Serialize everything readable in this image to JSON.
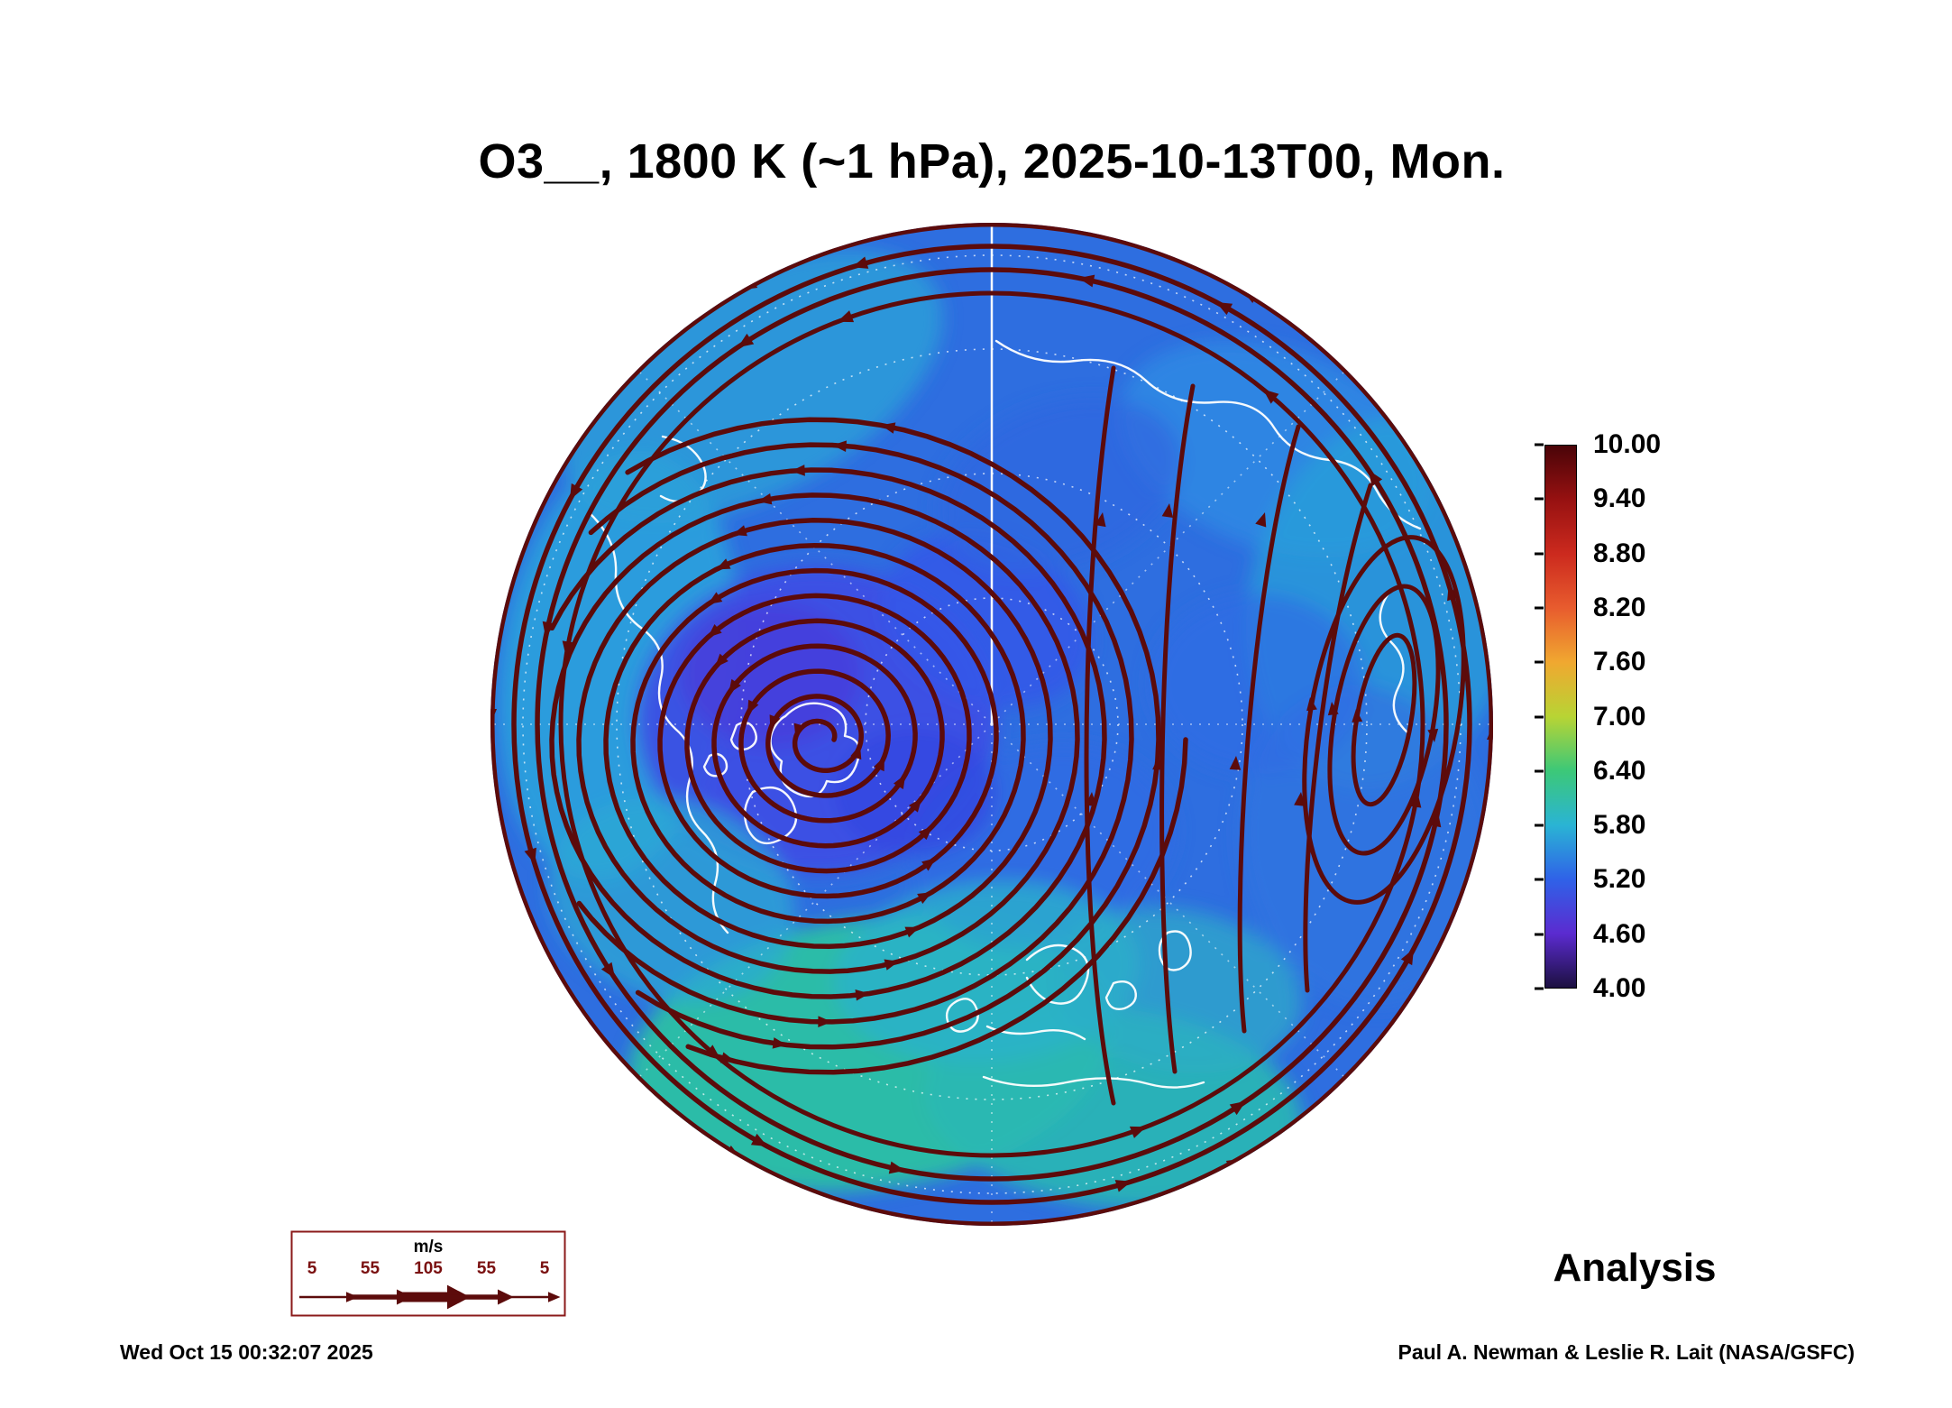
{
  "title": "O3__, 1800 K (~1 hPa), 2025-10-13T00, Mon.",
  "annotation": {
    "analysis_label": "Analysis"
  },
  "footer": {
    "timestamp": "Wed Oct 15 00:32:07 2025",
    "credit": "Paul A. Newman & Leslie R. Lait (NASA/GSFC)"
  },
  "wind_legend": {
    "units_label": "m/s",
    "speed_labels": [
      "5",
      "55",
      "105",
      "55",
      "5"
    ]
  },
  "colorbar": {
    "ticks": [
      "10.00",
      "9.40",
      "8.80",
      "8.20",
      "7.60",
      "7.00",
      "6.40",
      "5.80",
      "5.20",
      "4.60",
      "4.00"
    ],
    "colors_top_to_bottom": [
      "#4a0408",
      "#971111",
      "#cc2a1e",
      "#e85c2e",
      "#f0a830",
      "#b8d434",
      "#3cc878",
      "#2ab4d4",
      "#2f62e8",
      "#5b2bd0",
      "#1c1040"
    ]
  },
  "chart_data": {
    "type": "heatmap",
    "title": "O3__, 1800 K (~1 hPa), 2025-10-13T00, Mon.",
    "variable": "O3",
    "level": "1800 K (~1 hPa)",
    "valid_time": "2025-10-13T00",
    "weekday": "Mon.",
    "product": "Analysis",
    "projection": "north polar orthographic with wind streamlines",
    "colorbar": {
      "min": 4.0,
      "max": 10.0,
      "tick_step": 0.6,
      "ticks": [
        10.0,
        9.4,
        8.8,
        8.2,
        7.6,
        7.0,
        6.4,
        5.8,
        5.2,
        4.6,
        4.0
      ],
      "colors_top_to_bottom": [
        "#4a0408",
        "#971111",
        "#cc2a1e",
        "#e85c2e",
        "#f0a830",
        "#b8d434",
        "#3cc878",
        "#2ab4d4",
        "#2f62e8",
        "#5b2bd0",
        "#1c1040"
      ]
    },
    "wind_legend": {
      "units": "m/s",
      "speeds": [
        5,
        55,
        105,
        55,
        5
      ]
    },
    "field_colors": {
      "streamline": "#5c0b0b",
      "ocean_base": "#2e6ee0",
      "coastline": "#ffffff"
    }
  }
}
